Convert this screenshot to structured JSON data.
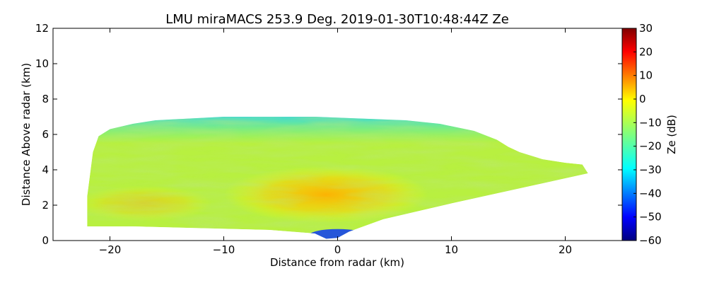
{
  "chart_data": {
    "type": "heatmap",
    "title": "LMU miraMACS 253.9 Deg. 2019-01-30T10:48:44Z  Ze",
    "xlabel": "Distance from radar (km)",
    "ylabel": "Distance Above radar  (km)",
    "xlim": [
      -25,
      25
    ],
    "ylim": [
      0,
      12
    ],
    "x_ticks": [
      -20,
      -10,
      0,
      10,
      20
    ],
    "x_tick_labels": [
      "−20",
      "−10",
      "0",
      "10",
      "20"
    ],
    "y_ticks": [
      0,
      2,
      4,
      6,
      8,
      10,
      12
    ],
    "y_tick_labels": [
      "0",
      "2",
      "4",
      "6",
      "8",
      "10",
      "12"
    ],
    "colorbar": {
      "label": "Ze (dB)",
      "range": [
        -60,
        30
      ],
      "ticks": [
        30,
        20,
        10,
        0,
        -10,
        -20,
        -30,
        -40,
        -50,
        -60
      ],
      "tick_labels": [
        "30",
        "20",
        "10",
        "0",
        "−10",
        "−20",
        "−30",
        "−40",
        "−50",
        "−60"
      ],
      "colormap": "jet"
    },
    "echo_region": {
      "outline_km": [
        [
          -22,
          0.8
        ],
        [
          -22,
          2.5
        ],
        [
          -21.5,
          5.0
        ],
        [
          -21,
          5.9
        ],
        [
          -20,
          6.3
        ],
        [
          -18,
          6.6
        ],
        [
          -16,
          6.8
        ],
        [
          -13,
          6.9
        ],
        [
          -10,
          7.0
        ],
        [
          -6,
          7.0
        ],
        [
          -2,
          7.0
        ],
        [
          2,
          6.9
        ],
        [
          6,
          6.8
        ],
        [
          9,
          6.6
        ],
        [
          12,
          6.2
        ],
        [
          14,
          5.7
        ],
        [
          15,
          5.3
        ],
        [
          16,
          5.0
        ],
        [
          18,
          4.6
        ],
        [
          20,
          4.4
        ],
        [
          21.5,
          4.3
        ],
        [
          22,
          3.8
        ],
        [
          10,
          2.1
        ],
        [
          4,
          1.2
        ],
        [
          1,
          0.5
        ],
        [
          0,
          0.15
        ],
        [
          -1,
          0.1
        ],
        [
          -2,
          0.4
        ],
        [
          -6,
          0.6
        ],
        [
          -12,
          0.7
        ],
        [
          -18,
          0.8
        ]
      ],
      "features": [
        {
          "name": "core-reflectivity",
          "center_km": [
            -1,
            2.6
          ],
          "ze_db": 0
        },
        {
          "name": "upper-edge",
          "height_km": 6.8,
          "ze_db": -25
        },
        {
          "name": "near-radar-weak-echo",
          "center_km": [
            0,
            0.3
          ],
          "ze_db": -45
        }
      ]
    }
  }
}
